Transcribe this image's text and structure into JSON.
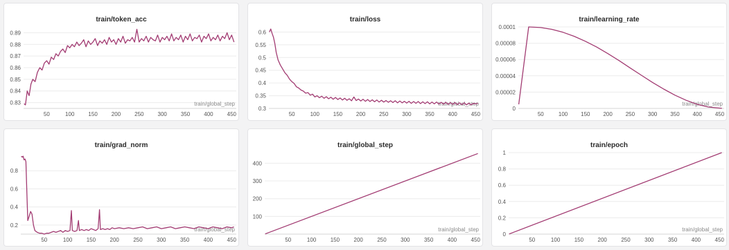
{
  "series_color": "#a23b72",
  "chart_data": [
    {
      "type": "line",
      "title": "train/token_acc",
      "xlabel": "train/global_step",
      "xlim": [
        0,
        460
      ],
      "ylim": [
        0.825,
        0.895
      ],
      "xticks": [
        50,
        100,
        150,
        200,
        250,
        300,
        350,
        400,
        450
      ],
      "yticks": [
        0.83,
        0.84,
        0.85,
        0.86,
        0.87,
        0.88,
        0.89
      ],
      "ytick_labels": [
        "0.83",
        "0.84",
        "0.85",
        "0.86",
        "0.87",
        "0.88",
        "0.89"
      ],
      "series": [
        {
          "x": [
            1,
            4,
            8,
            12,
            16,
            20,
            25,
            30,
            35,
            40,
            45,
            50,
            55,
            60,
            65,
            70,
            75,
            80,
            85,
            90,
            95,
            100,
            105,
            110,
            115,
            120,
            125,
            130,
            135,
            140,
            145,
            150,
            155,
            160,
            165,
            170,
            175,
            180,
            185,
            190,
            195,
            200,
            205,
            210,
            215,
            220,
            225,
            230,
            235,
            240,
            245,
            250,
            255,
            260,
            265,
            270,
            275,
            280,
            285,
            290,
            295,
            300,
            305,
            310,
            315,
            320,
            325,
            330,
            335,
            340,
            345,
            350,
            355,
            360,
            365,
            370,
            375,
            380,
            385,
            390,
            395,
            400,
            405,
            410,
            415,
            420,
            425,
            430,
            435,
            440,
            445,
            450,
            455
          ],
          "y": [
            0.829,
            0.828,
            0.84,
            0.836,
            0.846,
            0.85,
            0.848,
            0.856,
            0.86,
            0.858,
            0.864,
            0.866,
            0.863,
            0.869,
            0.867,
            0.872,
            0.87,
            0.874,
            0.876,
            0.873,
            0.879,
            0.877,
            0.88,
            0.878,
            0.882,
            0.879,
            0.881,
            0.884,
            0.878,
            0.883,
            0.88,
            0.882,
            0.885,
            0.879,
            0.883,
            0.881,
            0.884,
            0.88,
            0.886,
            0.882,
            0.884,
            0.88,
            0.885,
            0.882,
            0.887,
            0.881,
            0.884,
            0.883,
            0.886,
            0.882,
            0.893,
            0.882,
            0.885,
            0.883,
            0.887,
            0.882,
            0.886,
            0.884,
            0.883,
            0.888,
            0.882,
            0.886,
            0.884,
            0.887,
            0.883,
            0.889,
            0.883,
            0.886,
            0.884,
            0.888,
            0.882,
            0.887,
            0.884,
            0.889,
            0.883,
            0.886,
            0.885,
            0.888,
            0.882,
            0.887,
            0.885,
            0.889,
            0.883,
            0.886,
            0.884,
            0.888,
            0.883,
            0.887,
            0.885,
            0.89,
            0.884,
            0.888,
            0.882
          ]
        }
      ]
    },
    {
      "type": "line",
      "title": "train/loss",
      "xlabel": "train/global_step",
      "xlim": [
        0,
        460
      ],
      "ylim": [
        0.3,
        0.62
      ],
      "xticks": [
        50,
        100,
        150,
        200,
        250,
        300,
        350,
        400,
        450
      ],
      "yticks": [
        0.3,
        0.35,
        0.4,
        0.45,
        0.5,
        0.55,
        0.6
      ],
      "ytick_labels": [
        "0.3",
        "0.35",
        "0.4",
        "0.45",
        "0.5",
        "0.55",
        "0.6"
      ],
      "series": [
        {
          "x": [
            1,
            4,
            7,
            10,
            13,
            16,
            20,
            25,
            30,
            35,
            40,
            45,
            50,
            55,
            60,
            65,
            70,
            75,
            80,
            85,
            90,
            95,
            100,
            105,
            110,
            115,
            120,
            125,
            130,
            135,
            140,
            145,
            150,
            155,
            160,
            165,
            170,
            175,
            180,
            185,
            190,
            195,
            200,
            205,
            210,
            215,
            220,
            225,
            230,
            235,
            240,
            245,
            250,
            255,
            260,
            265,
            270,
            275,
            280,
            285,
            290,
            295,
            300,
            305,
            310,
            315,
            320,
            325,
            330,
            335,
            340,
            345,
            350,
            355,
            360,
            365,
            370,
            375,
            380,
            385,
            390,
            395,
            400,
            405,
            410,
            415,
            420,
            425,
            430,
            435,
            440,
            445,
            450,
            455
          ],
          "y": [
            0.6,
            0.612,
            0.595,
            0.58,
            0.555,
            0.52,
            0.49,
            0.47,
            0.455,
            0.44,
            0.43,
            0.415,
            0.405,
            0.398,
            0.385,
            0.38,
            0.372,
            0.368,
            0.36,
            0.362,
            0.352,
            0.356,
            0.345,
            0.35,
            0.342,
            0.348,
            0.34,
            0.346,
            0.338,
            0.344,
            0.336,
            0.343,
            0.335,
            0.341,
            0.333,
            0.34,
            0.332,
            0.338,
            0.33,
            0.345,
            0.331,
            0.337,
            0.329,
            0.336,
            0.328,
            0.335,
            0.327,
            0.334,
            0.326,
            0.333,
            0.325,
            0.332,
            0.325,
            0.331,
            0.324,
            0.33,
            0.323,
            0.33,
            0.322,
            0.329,
            0.322,
            0.328,
            0.321,
            0.328,
            0.32,
            0.327,
            0.32,
            0.327,
            0.319,
            0.326,
            0.319,
            0.326,
            0.318,
            0.325,
            0.318,
            0.325,
            0.317,
            0.324,
            0.317,
            0.324,
            0.316,
            0.323,
            0.316,
            0.323,
            0.315,
            0.322,
            0.315,
            0.322,
            0.314,
            0.321,
            0.314,
            0.32,
            0.318,
            0.32
          ]
        }
      ]
    },
    {
      "type": "line",
      "title": "train/learning_rate",
      "xlabel": "train/global_step",
      "xlim": [
        0,
        460
      ],
      "ylim": [
        0,
        0.0001
      ],
      "xticks": [
        50,
        100,
        150,
        200,
        250,
        300,
        350,
        400,
        450
      ],
      "yticks": [
        0,
        2e-05,
        4e-05,
        6e-05,
        8e-05,
        0.0001
      ],
      "ytick_labels": [
        "0",
        "0.00002",
        "0.00004",
        "0.00006",
        "0.00008",
        "0.0001"
      ],
      "series": [
        {
          "x": [
            1,
            23,
            50,
            75,
            100,
            125,
            150,
            175,
            200,
            225,
            250,
            275,
            300,
            325,
            350,
            375,
            400,
            425,
            455
          ],
          "y": [
            5e-06,
            0.0001,
            9.92e-05,
            9.7e-05,
            9.34e-05,
            8.85e-05,
            8.24e-05,
            7.53e-05,
            6.73e-05,
            5.87e-05,
            4.97e-05,
            4.07e-05,
            3.19e-05,
            2.37e-05,
            1.63e-05,
            1e-05,
            5e-06,
            1.7e-06,
            1e-07
          ]
        }
      ]
    },
    {
      "type": "line",
      "title": "train/grad_norm",
      "xlabel": "train/global_step",
      "xlim": [
        0,
        460
      ],
      "ylim": [
        0.1,
        1.0
      ],
      "xticks": [
        50,
        100,
        150,
        200,
        250,
        300,
        350,
        400,
        450
      ],
      "yticks": [
        0.2,
        0.4,
        0.6,
        0.8
      ],
      "ytick_labels": [
        "0.2",
        "0.4",
        "0.6",
        "0.8"
      ],
      "series": [
        {
          "x": [
            1,
            3,
            5,
            7,
            9,
            11,
            13,
            15,
            18,
            21,
            24,
            27,
            30,
            35,
            40,
            45,
            50,
            55,
            60,
            65,
            70,
            75,
            80,
            85,
            90,
            95,
            100,
            105,
            108,
            110,
            115,
            120,
            123,
            125,
            130,
            135,
            140,
            145,
            150,
            155,
            160,
            165,
            168,
            170,
            175,
            180,
            185,
            190,
            195,
            200,
            210,
            220,
            230,
            240,
            250,
            260,
            270,
            280,
            290,
            300,
            310,
            320,
            330,
            340,
            350,
            360,
            370,
            380,
            390,
            400,
            410,
            420,
            430,
            440,
            450,
            455
          ],
          "y": [
            0.96,
            0.95,
            0.96,
            0.92,
            0.93,
            0.9,
            0.55,
            0.25,
            0.3,
            0.35,
            0.32,
            0.2,
            0.14,
            0.12,
            0.11,
            0.11,
            0.1,
            0.11,
            0.11,
            0.12,
            0.13,
            0.12,
            0.13,
            0.14,
            0.12,
            0.14,
            0.13,
            0.14,
            0.36,
            0.14,
            0.13,
            0.14,
            0.25,
            0.14,
            0.15,
            0.14,
            0.15,
            0.14,
            0.16,
            0.15,
            0.14,
            0.16,
            0.37,
            0.15,
            0.16,
            0.15,
            0.16,
            0.15,
            0.17,
            0.16,
            0.17,
            0.16,
            0.17,
            0.16,
            0.17,
            0.18,
            0.16,
            0.17,
            0.18,
            0.16,
            0.17,
            0.18,
            0.16,
            0.17,
            0.18,
            0.17,
            0.16,
            0.18,
            0.17,
            0.16,
            0.18,
            0.17,
            0.16,
            0.18,
            0.17,
            0.18
          ]
        }
      ]
    },
    {
      "type": "line",
      "title": "train/global_step",
      "xlabel": "train/global_step",
      "xlim": [
        0,
        460
      ],
      "ylim": [
        0,
        460
      ],
      "xticks": [
        50,
        100,
        150,
        200,
        250,
        300,
        350,
        400,
        450
      ],
      "yticks": [
        100,
        200,
        300,
        400
      ],
      "ytick_labels": [
        "100",
        "200",
        "300",
        "400"
      ],
      "series": [
        {
          "x": [
            1,
            455
          ],
          "y": [
            1,
            455
          ]
        }
      ]
    },
    {
      "type": "line",
      "title": "train/epoch",
      "xlabel": "train/global_step",
      "xlim": [
        0,
        460
      ],
      "ylim": [
        0,
        1.0
      ],
      "xticks": [
        50,
        100,
        150,
        200,
        250,
        300,
        350,
        400,
        450
      ],
      "yticks": [
        0,
        0.2,
        0.4,
        0.6,
        0.8,
        1
      ],
      "ytick_labels": [
        "0",
        "0.2",
        "0.4",
        "0.6",
        "0.8",
        "1"
      ],
      "series": [
        {
          "x": [
            1,
            455
          ],
          "y": [
            0.002,
            1.0
          ]
        }
      ]
    }
  ]
}
